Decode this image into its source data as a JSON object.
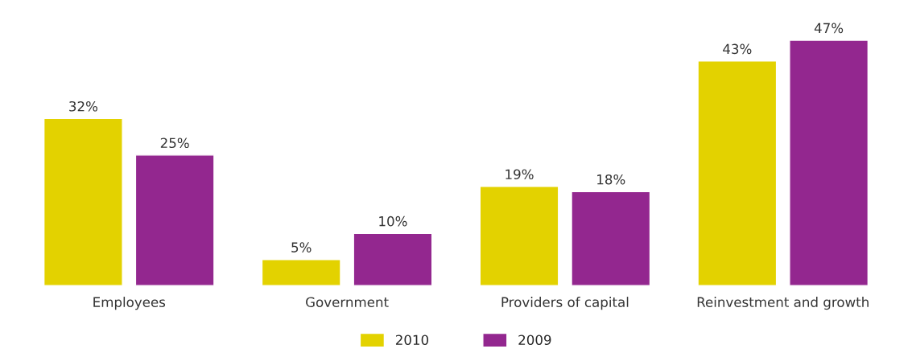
{
  "chart_data": {
    "type": "bar",
    "categories": [
      "Employees",
      "Government",
      "Providers of capital",
      "Reinvestment and growth"
    ],
    "series": [
      {
        "name": "2010",
        "color": "#e3d200",
        "values": [
          32,
          5,
          19,
          43
        ],
        "value_labels": [
          "32%",
          "5%",
          "19%",
          "43%"
        ]
      },
      {
        "name": "2009",
        "color": "#93278f",
        "values": [
          25,
          10,
          18,
          47
        ],
        "value_labels": [
          "25%",
          "10%",
          "18%",
          "47%"
        ]
      }
    ],
    "legend": "bottom",
    "grid": false
  }
}
